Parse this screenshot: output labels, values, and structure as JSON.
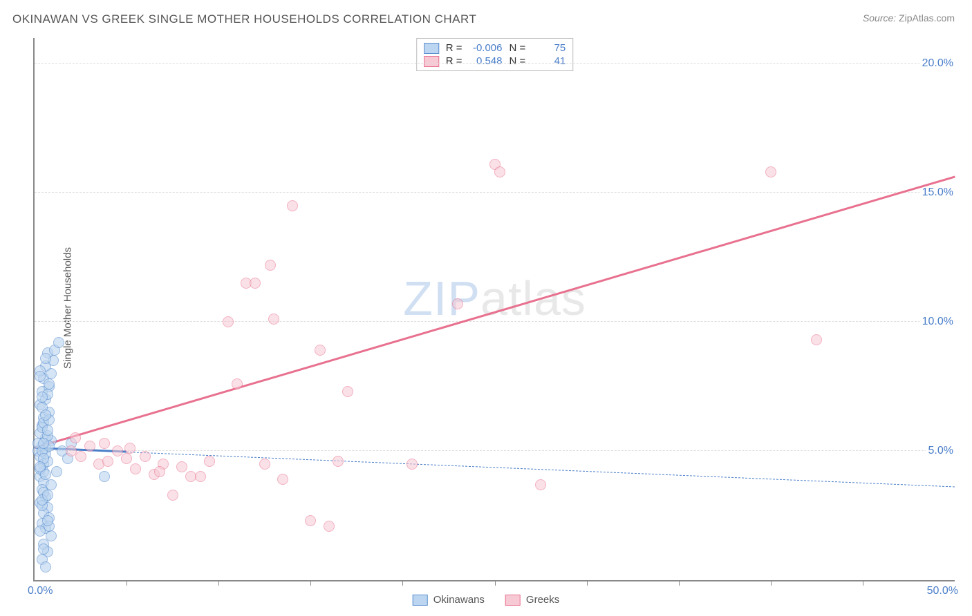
{
  "title": "OKINAWAN VS GREEK SINGLE MOTHER HOUSEHOLDS CORRELATION CHART",
  "source_label": "Source:",
  "source_value": "ZipAtlas.com",
  "y_axis_label": "Single Mother Households",
  "watermark_part1": "ZIP",
  "watermark_part2": "atlas",
  "chart": {
    "type": "scatter",
    "background_color": "#ffffff",
    "grid_color": "#dddddd",
    "axis_color": "#888888",
    "tick_label_color": "#4a7ec9",
    "xlim": [
      0,
      50
    ],
    "ylim": [
      0,
      21
    ],
    "x_ticks": [
      5,
      10,
      15,
      20,
      25,
      30,
      35,
      40,
      45
    ],
    "y_gridlines": [
      5,
      10,
      15,
      20
    ],
    "y_tick_labels": [
      "5.0%",
      "10.0%",
      "15.0%",
      "20.0%"
    ],
    "x_origin_label": "0.0%",
    "x_max_label": "50.0%",
    "marker_radius": 8,
    "marker_border_width": 1.5,
    "axis_label_fontsize": 15,
    "tick_fontsize": 16
  },
  "series": [
    {
      "name": "Okinawans",
      "fill_color": "#bcd5f0",
      "border_color": "#5a8fd0",
      "fill_opacity": 0.6,
      "R": "-0.006",
      "N": "75",
      "trend": {
        "x1": 0,
        "y1": 5.1,
        "x2": 50,
        "y2": 3.6,
        "color": "#4a7ec9",
        "solid_until_x": 5,
        "dash": true,
        "width": 2
      },
      "points": [
        [
          0.2,
          5.0
        ],
        [
          0.3,
          4.8
        ],
        [
          0.4,
          5.2
        ],
        [
          0.5,
          4.5
        ],
        [
          0.6,
          5.5
        ],
        [
          0.4,
          6.0
        ],
        [
          0.5,
          6.3
        ],
        [
          0.3,
          6.8
        ],
        [
          0.6,
          7.0
        ],
        [
          0.4,
          7.3
        ],
        [
          0.8,
          7.5
        ],
        [
          0.5,
          7.8
        ],
        [
          0.9,
          8.0
        ],
        [
          0.6,
          8.3
        ],
        [
          1.0,
          8.5
        ],
        [
          0.7,
          8.8
        ],
        [
          1.1,
          8.9
        ],
        [
          1.3,
          9.2
        ],
        [
          0.3,
          4.0
        ],
        [
          0.5,
          3.8
        ],
        [
          0.4,
          3.5
        ],
        [
          0.6,
          3.2
        ],
        [
          0.3,
          3.0
        ],
        [
          0.7,
          2.8
        ],
        [
          0.5,
          2.6
        ],
        [
          0.8,
          2.4
        ],
        [
          0.4,
          2.2
        ],
        [
          0.6,
          2.0
        ],
        [
          0.9,
          1.7
        ],
        [
          0.5,
          1.4
        ],
        [
          0.7,
          1.1
        ],
        [
          0.4,
          0.8
        ],
        [
          0.6,
          0.5
        ],
        [
          0.2,
          5.3
        ],
        [
          0.3,
          5.7
        ],
        [
          0.5,
          4.2
        ],
        [
          0.7,
          4.6
        ],
        [
          0.4,
          5.9
        ],
        [
          0.8,
          6.5
        ],
        [
          0.3,
          4.3
        ],
        [
          0.6,
          5.1
        ],
        [
          0.9,
          5.4
        ],
        [
          0.4,
          6.7
        ],
        [
          0.7,
          7.2
        ],
        [
          0.5,
          3.4
        ],
        [
          0.8,
          2.1
        ],
        [
          0.3,
          1.9
        ],
        [
          0.6,
          4.9
        ],
        [
          0.4,
          5.0
        ],
        [
          0.7,
          5.6
        ],
        [
          0.5,
          6.1
        ],
        [
          0.8,
          7.6
        ],
        [
          0.3,
          8.1
        ],
        [
          0.6,
          4.1
        ],
        [
          0.9,
          3.7
        ],
        [
          0.4,
          2.9
        ],
        [
          0.7,
          5.8
        ],
        [
          0.5,
          4.7
        ],
        [
          0.8,
          6.2
        ],
        [
          0.3,
          7.9
        ],
        [
          0.6,
          8.6
        ],
        [
          0.4,
          3.1
        ],
        [
          0.7,
          2.3
        ],
        [
          0.5,
          1.2
        ],
        [
          0.8,
          5.2
        ],
        [
          0.3,
          4.4
        ],
        [
          0.6,
          6.4
        ],
        [
          0.4,
          7.1
        ],
        [
          0.7,
          3.3
        ],
        [
          0.5,
          5.3
        ],
        [
          3.8,
          4.0
        ],
        [
          2.0,
          5.3
        ],
        [
          1.5,
          5.0
        ],
        [
          1.8,
          4.7
        ],
        [
          1.2,
          4.2
        ]
      ]
    },
    {
      "name": "Greeks",
      "fill_color": "#f7c9d4",
      "border_color": "#e8718f",
      "fill_opacity": 0.55,
      "R": "0.548",
      "N": "41",
      "trend": {
        "x1": 0,
        "y1": 5.1,
        "x2": 50,
        "y2": 15.6,
        "color": "#e8718f",
        "dash": false,
        "width": 2.5
      },
      "points": [
        [
          2.0,
          5.0
        ],
        [
          2.5,
          4.8
        ],
        [
          3.0,
          5.2
        ],
        [
          3.5,
          4.5
        ],
        [
          4.0,
          4.6
        ],
        [
          4.5,
          5.0
        ],
        [
          5.0,
          4.7
        ],
        [
          5.5,
          4.3
        ],
        [
          6.0,
          4.8
        ],
        [
          6.5,
          4.1
        ],
        [
          7.0,
          4.5
        ],
        [
          7.5,
          3.3
        ],
        [
          8.0,
          4.4
        ],
        [
          8.5,
          4.0
        ],
        [
          9.5,
          4.6
        ],
        [
          10.5,
          10.0
        ],
        [
          11.0,
          7.6
        ],
        [
          11.5,
          11.5
        ],
        [
          12.0,
          11.5
        ],
        [
          12.5,
          4.5
        ],
        [
          13.0,
          10.1
        ],
        [
          13.5,
          3.9
        ],
        [
          14.0,
          14.5
        ],
        [
          15.0,
          2.3
        ],
        [
          15.5,
          8.9
        ],
        [
          16.0,
          2.1
        ],
        [
          16.5,
          4.6
        ],
        [
          17.0,
          7.3
        ],
        [
          20.5,
          4.5
        ],
        [
          23.0,
          10.7
        ],
        [
          25.0,
          16.1
        ],
        [
          25.3,
          15.8
        ],
        [
          27.5,
          3.7
        ],
        [
          40.0,
          15.8
        ],
        [
          42.5,
          9.3
        ],
        [
          2.2,
          5.5
        ],
        [
          3.8,
          5.3
        ],
        [
          5.2,
          5.1
        ],
        [
          6.8,
          4.2
        ],
        [
          9.0,
          4.0
        ],
        [
          12.8,
          12.2
        ]
      ]
    }
  ],
  "legend_top": {
    "r_label": "R =",
    "n_label": "N ="
  },
  "legend_bottom": {
    "items": [
      "Okinawans",
      "Greeks"
    ]
  }
}
